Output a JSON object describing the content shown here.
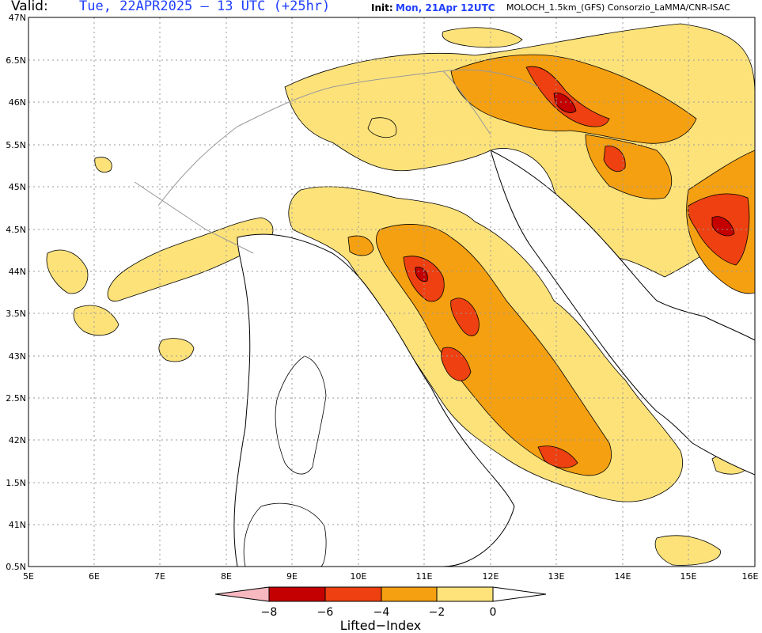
{
  "header": {
    "valid_label": "Valid:",
    "valid_value": "Tue, 22APR2025 – 13 UTC (+25hr)",
    "init_label": "Init:",
    "init_value": "Mon, 21Apr 12UTC",
    "model_info": "MOLOCH_1.5km_(GFS) Consorzio_LaMMA/CNR-ISAC"
  },
  "axes": {
    "lat_labels": [
      "47N",
      "6.5N",
      "46N",
      "5.5N",
      "45N",
      "4.5N",
      "44N",
      "3.5N",
      "43N",
      "2.5N",
      "42N",
      "1.5N",
      "41N",
      "0.5N"
    ],
    "lon_labels": [
      "5E",
      "6E",
      "7E",
      "8E",
      "9E",
      "10E",
      "11E",
      "12E",
      "13E",
      "14E",
      "15E",
      "16E"
    ]
  },
  "colorbar": {
    "title": "Lifted−Index",
    "tick_labels": [
      "−8",
      "−6",
      "−4",
      "−2",
      "0"
    ],
    "colors": [
      "#f8b8c0",
      "#c40000",
      "#ee4010",
      "#f5a011",
      "#fde27a",
      "#ffffff"
    ]
  },
  "map_colors": {
    "background": "#ffffff",
    "class_0_2": "#fde27a",
    "class_2_4": "#f5a011",
    "class_4_6": "#ee4010",
    "class_6_8": "#c40000",
    "contour": "#000000",
    "borders": "#999999",
    "grid": "#9a9a9a"
  }
}
